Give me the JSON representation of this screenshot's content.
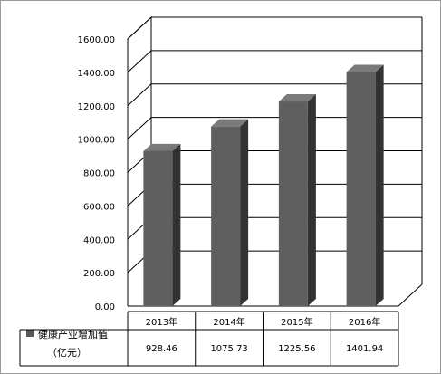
{
  "chart_data": {
    "type": "bar",
    "categories": [
      "2013年",
      "2014年",
      "2015年",
      "2016年"
    ],
    "series": [
      {
        "name": "健康产业增加值（亿元）",
        "values": [
          928.46,
          1075.73,
          1225.56,
          1401.94
        ]
      }
    ],
    "value_labels": [
      "928.46",
      "1075.73",
      "1225.56",
      "1401.94"
    ],
    "legend_lines": [
      "健康产业增加值",
      "（亿元）"
    ],
    "y_ticks": [
      "0.00",
      "200.00",
      "400.00",
      "600.00",
      "800.00",
      "1000.00",
      "1200.00",
      "1400.00",
      "1600.00"
    ],
    "ylim": [
      0,
      1600
    ],
    "grid": true,
    "style": "3d",
    "data_table": true,
    "colors": {
      "bar_front": "#5f5f5f",
      "bar_side": "#333333",
      "bar_top": "#7a7a7a",
      "grid": "#000000",
      "legend_key": "#595959"
    }
  }
}
